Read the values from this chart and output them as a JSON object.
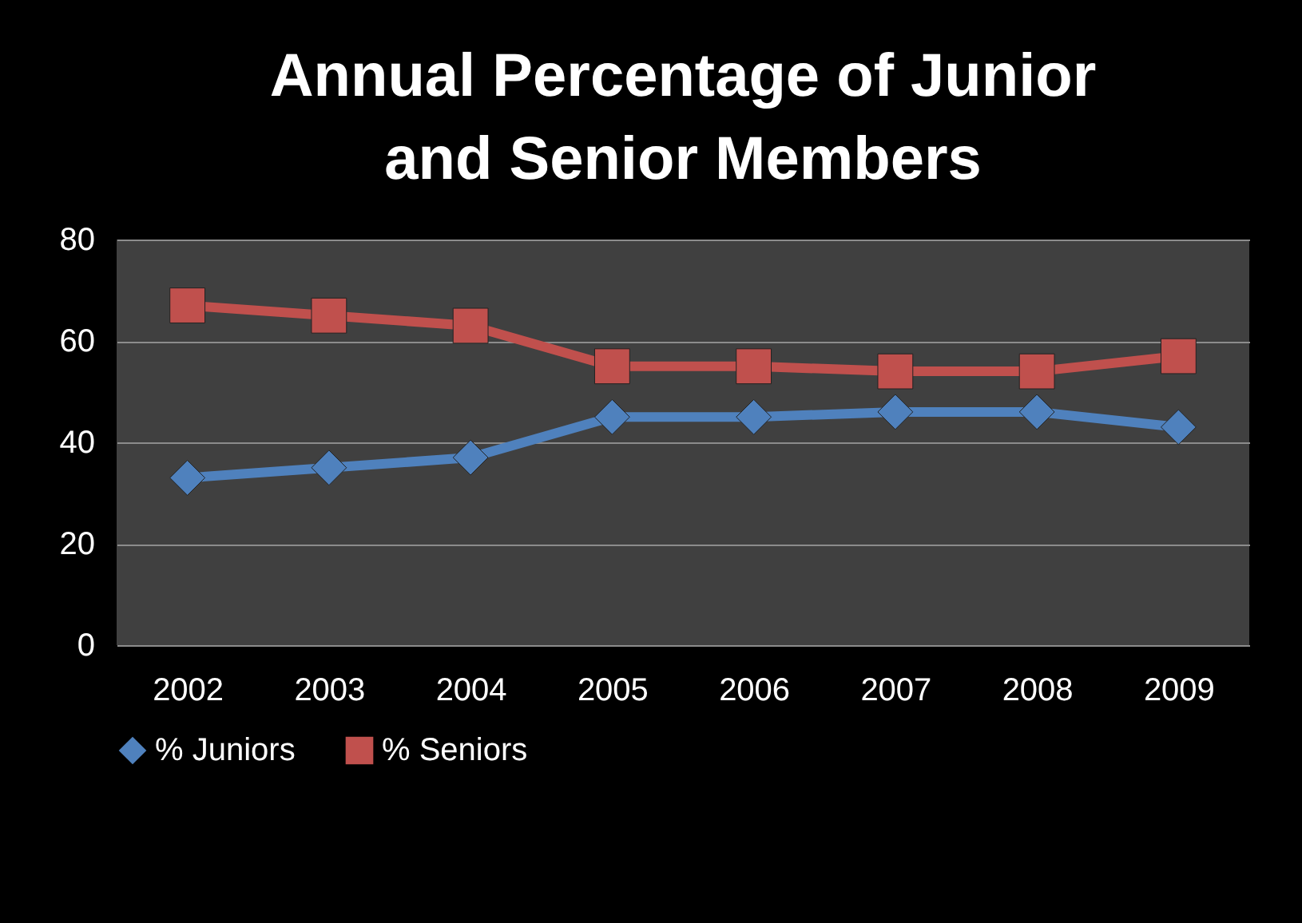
{
  "chart_data": {
    "type": "line",
    "title": "Annual Percentage of Junior and Senior Members",
    "categories": [
      "2002",
      "2003",
      "2004",
      "2005",
      "2006",
      "2007",
      "2008",
      "2009"
    ],
    "series": [
      {
        "name": "% Juniors",
        "color": "#4f81bd",
        "marker": "diamond",
        "values": [
          33,
          35,
          37,
          45,
          45,
          46,
          46,
          43
        ]
      },
      {
        "name": "% Seniors",
        "color": "#c0504d",
        "marker": "square",
        "values": [
          67,
          65,
          63,
          55,
          55,
          54,
          54,
          57
        ]
      }
    ],
    "ylim": [
      0,
      80
    ],
    "yticks": [
      0,
      20,
      40,
      60,
      80
    ],
    "grid": "y",
    "legend": "bottom"
  }
}
